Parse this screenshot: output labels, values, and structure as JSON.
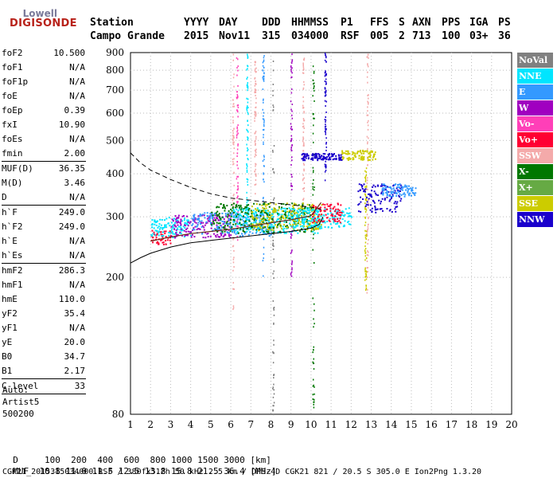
{
  "logo": {
    "line1": "Lowell",
    "line2": "DIGISONDE"
  },
  "header": {
    "labels": [
      "Station",
      "YYYY",
      "DAY",
      "DDD",
      "HHMMSS",
      "P1",
      "FFS",
      "S",
      "AXN",
      "PPS",
      "IGA",
      "PS"
    ],
    "values": [
      "Campo Grande",
      "2015",
      "Nov11",
      "315",
      "034000",
      "RSF",
      "005",
      "2",
      "713",
      "100",
      "03+",
      "36"
    ]
  },
  "params": [
    {
      "label": "foF2",
      "value": "10.500"
    },
    {
      "label": "foF1",
      "value": "N/A"
    },
    {
      "label": "foF1p",
      "value": "N/A"
    },
    {
      "label": "foE",
      "value": "N/A"
    },
    {
      "label": "foEp",
      "value": "0.39"
    },
    {
      "label": "fxI",
      "value": "10.90"
    },
    {
      "label": "foEs",
      "value": "N/A"
    },
    {
      "label": "fmin",
      "value": "2.00"
    },
    {
      "sep": true
    },
    {
      "label": "MUF(D)",
      "value": "36.35"
    },
    {
      "label": "M(D)",
      "value": "3.46"
    },
    {
      "label": "D",
      "value": "N/A"
    },
    {
      "sep": true
    },
    {
      "label": "h`F",
      "value": "249.0"
    },
    {
      "label": "h`F2",
      "value": "249.0"
    },
    {
      "label": "h`E",
      "value": "N/A"
    },
    {
      "label": "h`Es",
      "value": "N/A"
    },
    {
      "sep": true
    },
    {
      "label": "hmF2",
      "value": "286.3"
    },
    {
      "label": "hmF1",
      "value": "N/A"
    },
    {
      "label": "hmE",
      "value": "110.0"
    },
    {
      "label": "yF2",
      "value": "35.4"
    },
    {
      "label": "yF1",
      "value": "N/A"
    },
    {
      "label": "yE",
      "value": "20.0"
    },
    {
      "label": "B0",
      "value": "34.7"
    },
    {
      "label": "B1",
      "value": "2.17"
    },
    {
      "sep": true
    },
    {
      "label": "C-level",
      "value": "33"
    },
    {
      "sep": true
    }
  ],
  "auto": {
    "line1": "Auto:",
    "line2": "Artist5",
    "line3": "500200"
  },
  "legend": [
    {
      "name": "NoVal",
      "color": "#808080"
    },
    {
      "name": "NNE",
      "color": "#00e5ff"
    },
    {
      "name": "E",
      "color": "#3399ff"
    },
    {
      "name": "W",
      "color": "#a000c0"
    },
    {
      "name": "Vo-",
      "color": "#ff3fb8"
    },
    {
      "name": "Vo+",
      "color": "#ff0033"
    },
    {
      "name": "SSW",
      "color": "#f4aaaa"
    },
    {
      "name": "X-",
      "color": "#007700"
    },
    {
      "name": "X+",
      "color": "#66aa44"
    },
    {
      "name": "SSE",
      "color": "#cccc00"
    },
    {
      "name": "NNW",
      "color": "#1a00cc"
    }
  ],
  "footer": {
    "d_row": [
      "D",
      "100",
      "200",
      "400",
      "600",
      "800",
      "1000",
      "1500",
      "3000",
      "[km]"
    ],
    "muf_row": [
      "MUF",
      "10.8",
      "11.0",
      "11.5",
      "12.5",
      "13.8",
      "15.8",
      "21.5",
      "36.4",
      "[MHz]"
    ],
    "info": "CGK21_2015315034000.RSF / 380fx512h 50 kHz 2.5 km / DPS-4D CGK21 821 / 20.5 S 305.0 E Ion2Png 1.3.20"
  },
  "chart_data": {
    "type": "scatter",
    "xlim": [
      1,
      20
    ],
    "ylim": [
      80,
      900
    ],
    "y_scale": "log",
    "x_ticks": [
      1,
      2,
      3,
      4,
      5,
      6,
      7,
      8,
      9,
      10,
      11,
      12,
      13,
      14,
      15,
      16,
      17,
      18,
      19,
      20
    ],
    "y_ticks": [
      80,
      200,
      300,
      400,
      500,
      600,
      700,
      800,
      900
    ],
    "y_tick_labels": [
      "80",
      "200",
      "300",
      "400",
      "500",
      "600",
      "700",
      "800",
      "900"
    ],
    "grid": "dotted",
    "series": [
      {
        "direction": "NoVal",
        "color": "#808080"
      },
      {
        "direction": "NNE",
        "color": "#00e5ff"
      },
      {
        "direction": "E",
        "color": "#3399ff"
      },
      {
        "direction": "W",
        "color": "#a000c0"
      },
      {
        "direction": "Vo-",
        "color": "#ff3fb8"
      },
      {
        "direction": "Vo+",
        "color": "#ff0033"
      },
      {
        "direction": "SSW",
        "color": "#f4aaaa"
      },
      {
        "direction": "X-",
        "color": "#007700"
      },
      {
        "direction": "X+",
        "color": "#66aa44"
      },
      {
        "direction": "SSE",
        "color": "#cccc00"
      },
      {
        "direction": "NNW",
        "color": "#1a00cc"
      }
    ],
    "clusters": [
      {
        "freq": [
          2.0,
          3.0
        ],
        "height": [
          250,
          275
        ],
        "dir": "Vo+"
      },
      {
        "freq": [
          2.0,
          4.0
        ],
        "height": [
          262,
          300
        ],
        "dir": "NNE"
      },
      {
        "freq": [
          3.0,
          6.0
        ],
        "height": [
          262,
          305
        ],
        "dir": "W"
      },
      {
        "freq": [
          4.0,
          8.0
        ],
        "height": [
          265,
          310
        ],
        "dir": "E"
      },
      {
        "freq": [
          6.0,
          10.5
        ],
        "height": [
          270,
          320
        ],
        "dir": "NNE"
      },
      {
        "freq": [
          5.0,
          10.0
        ],
        "height": [
          270,
          330
        ],
        "dir": "X-"
      },
      {
        "freq": [
          7.0,
          10.5
        ],
        "height": [
          275,
          330
        ],
        "dir": "SSE"
      },
      {
        "freq": [
          9.0,
          12.0
        ],
        "height": [
          280,
          320
        ],
        "dir": "NNE"
      },
      {
        "freq": [
          10.0,
          11.5
        ],
        "height": [
          290,
          330
        ],
        "dir": "Vo+"
      },
      {
        "freq": [
          12.3,
          14.5
        ],
        "height": [
          310,
          375
        ],
        "dir": "NNW"
      },
      {
        "freq": [
          13.5,
          15.2
        ],
        "height": [
          345,
          375
        ],
        "dir": "E"
      },
      {
        "freq": [
          11.5,
          13.2
        ],
        "height": [
          440,
          470
        ],
        "dir": "SSE"
      },
      {
        "freq": [
          9.5,
          11.5
        ],
        "height": [
          440,
          460
        ],
        "dir": "NNW"
      }
    ],
    "vertical_streaks": [
      {
        "freq": 6.1,
        "height": [
          160,
          900
        ],
        "dir": "SSW"
      },
      {
        "freq": 6.3,
        "height": [
          250,
          900
        ],
        "dir": "Vo-"
      },
      {
        "freq": 6.8,
        "height": [
          300,
          900
        ],
        "dir": "NNE"
      },
      {
        "freq": 7.2,
        "height": [
          350,
          880
        ],
        "dir": "SSW"
      },
      {
        "freq": 7.6,
        "height": [
          200,
          900
        ],
        "dir": "E"
      },
      {
        "freq": 8.1,
        "height": [
          80,
          900
        ],
        "dir": "NoVal"
      },
      {
        "freq": 9.0,
        "height": [
          200,
          900
        ],
        "dir": "W"
      },
      {
        "freq": 9.6,
        "height": [
          300,
          900
        ],
        "dir": "SSW"
      },
      {
        "freq": 10.1,
        "height": [
          80,
          900
        ],
        "dir": "X-"
      },
      {
        "freq": 10.7,
        "height": [
          380,
          900
        ],
        "dir": "NNW"
      },
      {
        "freq": 12.8,
        "height": [
          180,
          900
        ],
        "dir": "SSW"
      },
      {
        "freq": 12.7,
        "height": [
          180,
          430
        ],
        "dir": "SSE"
      }
    ],
    "profile_dashed": [
      {
        "f": 1.0,
        "h": 460
      },
      {
        "f": 1.5,
        "h": 430
      },
      {
        "f": 2.0,
        "h": 410
      },
      {
        "f": 3.0,
        "h": 385
      },
      {
        "f": 4.0,
        "h": 365
      },
      {
        "f": 5.0,
        "h": 350
      },
      {
        "f": 6.0,
        "h": 340
      },
      {
        "f": 7.0,
        "h": 335
      },
      {
        "f": 8.0,
        "h": 330
      },
      {
        "f": 9.0,
        "h": 325
      },
      {
        "f": 10.0,
        "h": 320
      },
      {
        "f": 10.5,
        "h": 315
      }
    ],
    "profile_solid": [
      {
        "f": 1.0,
        "h": 220
      },
      {
        "f": 1.5,
        "h": 228
      },
      {
        "f": 2.0,
        "h": 235
      },
      {
        "f": 3.0,
        "h": 245
      },
      {
        "f": 4.0,
        "h": 252
      },
      {
        "f": 5.0,
        "h": 256
      },
      {
        "f": 6.0,
        "h": 260
      },
      {
        "f": 7.0,
        "h": 264
      },
      {
        "f": 8.0,
        "h": 268
      },
      {
        "f": 9.0,
        "h": 272
      },
      {
        "f": 10.0,
        "h": 278
      },
      {
        "f": 10.4,
        "h": 285
      },
      {
        "f": 10.6,
        "h": 300
      }
    ],
    "trace_dark": [
      {
        "f": 2.0,
        "h": 255
      },
      {
        "f": 3.0,
        "h": 262
      },
      {
        "f": 4.0,
        "h": 268
      },
      {
        "f": 5.0,
        "h": 272
      },
      {
        "f": 6.0,
        "h": 276
      },
      {
        "f": 7.0,
        "h": 282
      },
      {
        "f": 8.0,
        "h": 288
      },
      {
        "f": 9.0,
        "h": 294
      },
      {
        "f": 10.0,
        "h": 302
      },
      {
        "f": 10.5,
        "h": 330
      }
    ]
  }
}
